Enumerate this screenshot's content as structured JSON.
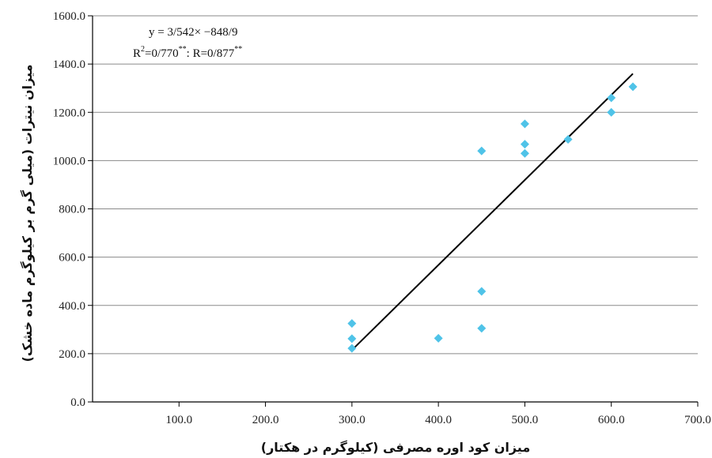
{
  "chart_data": {
    "type": "scatter",
    "xlabel": "میزان کود اوره مصرفی (کیلوگرم در هکتار)",
    "ylabel": "میزان نیترات (میلی گرم بر کیلوگرم ماده خشک)",
    "xlim": [
      0,
      700
    ],
    "ylim": [
      0,
      1600
    ],
    "x_ticks": [
      "100.0",
      "200.0",
      "300.0",
      "400.0",
      "500.0",
      "600.0",
      "700.0"
    ],
    "y_ticks": [
      "0.0",
      "200.0",
      "400.0",
      "600.0",
      "800.0",
      "1000.0",
      "1200.0",
      "1400.0",
      "1600.0"
    ],
    "grid": true,
    "marker_color": "#4fc3e8",
    "line_color": "#000000",
    "points": [
      {
        "x": 300,
        "y": 325
      },
      {
        "x": 300,
        "y": 262
      },
      {
        "x": 300,
        "y": 222
      },
      {
        "x": 400,
        "y": 264
      },
      {
        "x": 450,
        "y": 458
      },
      {
        "x": 450,
        "y": 305
      },
      {
        "x": 450,
        "y": 1040
      },
      {
        "x": 500,
        "y": 1152
      },
      {
        "x": 500,
        "y": 1068
      },
      {
        "x": 500,
        "y": 1030
      },
      {
        "x": 550,
        "y": 1088
      },
      {
        "x": 600,
        "y": 1260
      },
      {
        "x": 600,
        "y": 1200
      },
      {
        "x": 625,
        "y": 1306
      }
    ],
    "trendline": {
      "x": [
        300,
        625
      ],
      "y": [
        215,
        1360
      ]
    },
    "equation": {
      "line1": "y = 3/542× −848/9",
      "r2_base": "R",
      "r2_exp": "2",
      "r2_value": "=0/770",
      "r2_sig": "**",
      "r_value": ": R=0/877",
      "r_sig": "**"
    }
  }
}
